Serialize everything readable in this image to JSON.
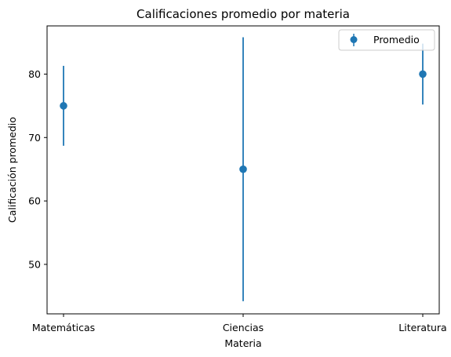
{
  "chart_data": {
    "type": "scatter",
    "title": "Calificaciones promedio por materia",
    "xlabel": "Materia",
    "ylabel": "Calificación promedio",
    "categories": [
      "Matemáticas",
      "Ciencias",
      "Literatura"
    ],
    "series": [
      {
        "name": "Promedio",
        "values": [
          75,
          65,
          80
        ],
        "error": [
          6.3,
          20.8,
          4.8
        ],
        "color": "#1f77b4"
      }
    ],
    "ylim": [
      42.2,
      87.6
    ],
    "yticks": [
      50,
      60,
      70,
      80
    ],
    "grid": false,
    "legend_position": "upper right"
  }
}
